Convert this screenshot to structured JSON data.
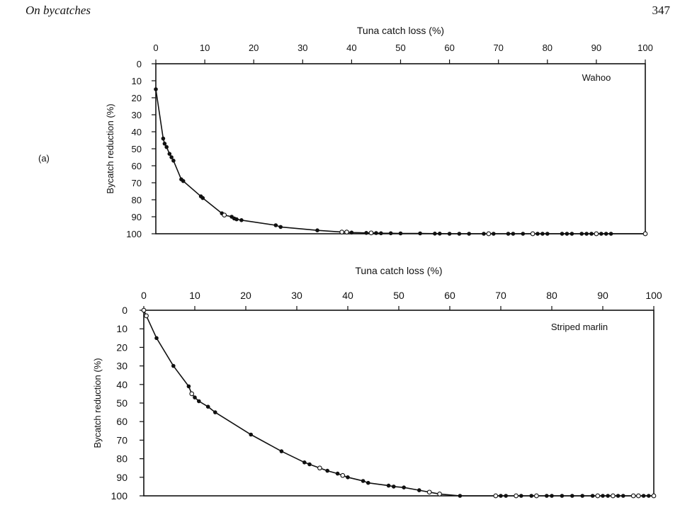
{
  "page": {
    "running_head": "On bycatches",
    "page_number": "347",
    "panel_label": "(a)"
  },
  "chart_data": [
    {
      "type": "line",
      "title": "",
      "xlabel": "Tuna catch loss (%)",
      "ylabel": "Bycatch reduction (%)",
      "annotation": "Wahoo",
      "xlim": [
        0,
        100
      ],
      "ylim": [
        0,
        100
      ],
      "y_inverted": true,
      "x_axis_position": "top",
      "grid": false,
      "x_ticks": [
        "0",
        "10",
        "20",
        "30",
        "40",
        "50",
        "60",
        "70",
        "80",
        "90",
        "100"
      ],
      "y_ticks": [
        "0",
        "10",
        "20",
        "30",
        "40",
        "50",
        "60",
        "70",
        "80",
        "90",
        "100"
      ],
      "series": [
        {
          "x": [
            0,
            1.5,
            1.8,
            2.2,
            2.8,
            3.2,
            3.6,
            5.2,
            5.6,
            9.2,
            9.6,
            13.5,
            14,
            15.5,
            16,
            16.5,
            17.5,
            24.5,
            25.5,
            33,
            38,
            39,
            40,
            43,
            44,
            45,
            46,
            48,
            50,
            54,
            57,
            58,
            60,
            62,
            64,
            67,
            68,
            69,
            72,
            73,
            75,
            77,
            78,
            79,
            80,
            83,
            84,
            85,
            87,
            88,
            89,
            90,
            91,
            92,
            93,
            100
          ],
          "y": [
            15,
            44,
            47,
            49,
            53,
            55,
            57,
            68,
            69,
            78,
            79,
            88,
            89,
            90,
            91,
            91.5,
            92,
            95,
            96,
            98,
            99,
            99,
            99.3,
            99.5,
            99.5,
            99.6,
            99.7,
            99.7,
            99.8,
            99.8,
            99.9,
            99.9,
            100,
            100,
            100,
            100,
            100,
            100,
            100,
            100,
            100,
            100,
            100,
            100,
            100,
            100,
            100,
            100,
            100,
            100,
            100,
            100,
            100,
            100,
            100,
            100
          ],
          "marker_open": [
            0,
            0,
            0,
            0,
            0,
            0,
            0,
            0,
            0,
            0,
            0,
            0,
            1,
            0,
            0,
            0,
            0,
            0,
            0,
            0,
            1,
            1,
            0,
            0,
            1,
            0,
            0,
            0,
            0,
            0,
            0,
            0,
            0,
            0,
            0,
            0,
            1,
            0,
            0,
            0,
            0,
            1,
            0,
            0,
            0,
            0,
            0,
            0,
            0,
            0,
            0,
            1,
            0,
            0,
            0,
            1
          ]
        }
      ]
    },
    {
      "type": "line",
      "title": "",
      "xlabel": "Tuna catch loss (%)",
      "ylabel": "Bycatch reduction (%)",
      "annotation": "Striped marlin",
      "xlim": [
        0,
        100
      ],
      "ylim": [
        0,
        100
      ],
      "y_inverted": true,
      "x_axis_position": "top",
      "grid": false,
      "x_ticks": [
        "0",
        "10",
        "20",
        "30",
        "40",
        "50",
        "60",
        "70",
        "80",
        "90",
        "100"
      ],
      "y_ticks": [
        "0",
        "10",
        "20",
        "30",
        "40",
        "50",
        "60",
        "70",
        "80",
        "90",
        "100"
      ],
      "series": [
        {
          "x": [
            0,
            0.5,
            2.5,
            5.8,
            8.8,
            9.4,
            10,
            10.8,
            12.6,
            14,
            21,
            27,
            31.5,
            32.5,
            34.5,
            36,
            38,
            39,
            40,
            43,
            44,
            48,
            49,
            51,
            54,
            56,
            58,
            62,
            69,
            70,
            71,
            73,
            74,
            76,
            77,
            79,
            80,
            82,
            84,
            86,
            88,
            89,
            90,
            91,
            92,
            93,
            94,
            96,
            97,
            98,
            99,
            100
          ],
          "y": [
            0,
            3,
            15,
            30,
            41,
            45,
            47,
            49,
            52,
            55,
            67,
            76,
            82,
            83,
            85,
            86.5,
            88,
            89,
            90,
            92,
            93,
            94.5,
            95,
            95.5,
            97,
            98,
            99,
            100,
            100,
            100,
            100,
            100,
            100,
            100,
            100,
            100,
            100,
            100,
            100,
            100,
            100,
            100,
            100,
            100,
            100,
            100,
            100,
            100,
            100,
            100,
            100,
            100
          ],
          "marker_open": [
            1,
            1,
            0,
            0,
            0,
            1,
            0,
            0,
            0,
            0,
            0,
            0,
            0,
            0,
            1,
            0,
            0,
            1,
            0,
            0,
            0,
            0,
            0,
            0,
            0,
            1,
            1,
            0,
            1,
            0,
            0,
            1,
            0,
            0,
            1,
            0,
            0,
            0,
            0,
            0,
            0,
            1,
            0,
            0,
            1,
            0,
            0,
            1,
            1,
            0,
            0,
            1
          ]
        }
      ]
    }
  ]
}
